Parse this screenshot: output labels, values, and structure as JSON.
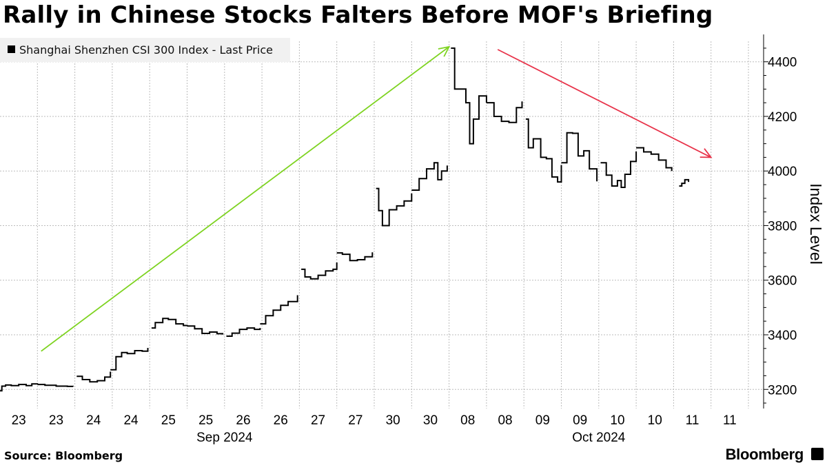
{
  "title": "Rally in Chinese Stocks Falters Before MOF's Briefing",
  "source": "Source: Bloomberg",
  "brand": "Bloomberg",
  "colors": {
    "series": "#000000",
    "up_arrow": "#7ed321",
    "down_arrow": "#e8334a",
    "grid": "#bbbbbb",
    "legend_bg": "#f1f1f1"
  },
  "chart_data": {
    "type": "line",
    "title": "Rally in Chinese Stocks Falters Before MOF's Briefing",
    "legend": [
      {
        "name": "Shanghai Shenzhen CSI 300 Index - Last Price",
        "color": "#000000",
        "placement": "top-left"
      }
    ],
    "xlabel": "",
    "ylabel": "Index Level",
    "y_axis_side": "right",
    "ylim": [
      3130,
      4480
    ],
    "yticks": [
      3200,
      3400,
      3600,
      3800,
      4000,
      4200,
      4400
    ],
    "grid": true,
    "x_tick_labels": [
      "23",
      "23",
      "24",
      "24",
      "25",
      "25",
      "26",
      "26",
      "27",
      "27",
      "30",
      "30",
      "08",
      "08",
      "09",
      "09",
      "10",
      "10",
      "11",
      "11"
    ],
    "x_group_labels": [
      "Sep 2024",
      "Oct 2024"
    ],
    "session_index_range": [
      0,
      20
    ],
    "series": [
      {
        "name": "Shanghai Shenzhen CSI 300 Index - Last Price",
        "segments": [
          [
            [
              0.0,
              3195
            ],
            [
              0.05,
              3212
            ],
            [
              0.15,
              3216
            ],
            [
              0.3,
              3214
            ],
            [
              0.5,
              3218
            ],
            [
              0.7,
              3214
            ],
            [
              0.85,
              3220
            ],
            [
              1.0,
              3218
            ]
          ],
          [
            [
              1.0,
              3218
            ],
            [
              1.2,
              3215
            ],
            [
              1.5,
              3212
            ],
            [
              1.8,
              3211
            ],
            [
              1.95,
              3210
            ]
          ],
          [
            [
              2.05,
              3248
            ],
            [
              2.2,
              3236
            ],
            [
              2.4,
              3228
            ],
            [
              2.6,
              3232
            ],
            [
              2.8,
              3245
            ],
            [
              2.95,
              3265
            ]
          ],
          [
            [
              2.95,
              3272
            ],
            [
              3.1,
              3320
            ],
            [
              3.25,
              3335
            ],
            [
              3.4,
              3331
            ],
            [
              3.6,
              3342
            ],
            [
              3.8,
              3340
            ],
            [
              3.95,
              3352
            ]
          ],
          [
            [
              4.05,
              3425
            ],
            [
              4.15,
              3445
            ],
            [
              4.35,
              3460
            ],
            [
              4.5,
              3456
            ],
            [
              4.7,
              3440
            ],
            [
              4.9,
              3434
            ],
            [
              5.0,
              3432
            ]
          ],
          [
            [
              5.0,
              3432
            ],
            [
              5.2,
              3422
            ],
            [
              5.4,
              3405
            ],
            [
              5.6,
              3410
            ],
            [
              5.8,
              3404
            ],
            [
              5.95,
              3401
            ]
          ],
          [
            [
              6.05,
              3395
            ],
            [
              6.2,
              3406
            ],
            [
              6.4,
              3420
            ],
            [
              6.6,
              3425
            ],
            [
              6.8,
              3420
            ],
            [
              6.95,
              3425
            ]
          ],
          [
            [
              6.95,
              3440
            ],
            [
              7.1,
              3470
            ],
            [
              7.3,
              3490
            ],
            [
              7.5,
              3508
            ],
            [
              7.7,
              3522
            ],
            [
              7.95,
              3545
            ]
          ],
          [
            [
              8.05,
              3640
            ],
            [
              8.15,
              3612
            ],
            [
              8.3,
              3605
            ],
            [
              8.5,
              3618
            ],
            [
              8.7,
              3634
            ],
            [
              8.9,
              3640
            ],
            [
              9.0,
              3665
            ]
          ],
          [
            [
              9.0,
              3700
            ],
            [
              9.15,
              3695
            ],
            [
              9.35,
              3672
            ],
            [
              9.55,
              3675
            ],
            [
              9.75,
              3686
            ],
            [
              9.95,
              3702
            ]
          ],
          [
            [
              10.05,
              3936
            ],
            [
              10.12,
              3855
            ],
            [
              10.22,
              3800
            ],
            [
              10.4,
              3858
            ],
            [
              10.6,
              3872
            ],
            [
              10.8,
              3890
            ],
            [
              11.0,
              3918
            ]
          ],
          [
            [
              11.0,
              3930
            ],
            [
              11.2,
              3972
            ],
            [
              11.4,
              4008
            ],
            [
              11.6,
              4030
            ],
            [
              11.7,
              3968
            ],
            [
              11.8,
              4000
            ],
            [
              11.95,
              4020
            ]
          ],
          [
            [
              12.05,
              4450
            ],
            [
              12.15,
              4300
            ],
            [
              12.3,
              4300
            ],
            [
              12.45,
              4250
            ],
            [
              12.55,
              4100
            ],
            [
              12.65,
              4190
            ],
            [
              12.8,
              4275
            ],
            [
              13.0,
              4250
            ]
          ],
          [
            [
              13.0,
              4250
            ],
            [
              13.2,
              4200
            ],
            [
              13.4,
              4182
            ],
            [
              13.6,
              4178
            ],
            [
              13.8,
              4232
            ],
            [
              13.95,
              4255
            ]
          ],
          [
            [
              14.05,
              4190
            ],
            [
              14.12,
              4085
            ],
            [
              14.25,
              4118
            ],
            [
              14.45,
              4050
            ],
            [
              14.6,
              4045
            ],
            [
              14.75,
              3978
            ],
            [
              14.9,
              3960
            ],
            [
              15.0,
              4022
            ]
          ],
          [
            [
              15.0,
              4030
            ],
            [
              15.15,
              4140
            ],
            [
              15.3,
              4138
            ],
            [
              15.45,
              4055
            ],
            [
              15.6,
              4074
            ],
            [
              15.75,
              4008
            ],
            [
              15.95,
              3962
            ]
          ],
          [
            [
              16.05,
              4030
            ],
            [
              16.2,
              3985
            ],
            [
              16.35,
              3945
            ],
            [
              16.5,
              3965
            ],
            [
              16.6,
              3940
            ],
            [
              16.7,
              3988
            ],
            [
              16.85,
              4035
            ],
            [
              17.0,
              4072
            ]
          ],
          [
            [
              17.0,
              4085
            ],
            [
              17.2,
              4070
            ],
            [
              17.4,
              4062
            ],
            [
              17.6,
              4040
            ],
            [
              17.8,
              4012
            ],
            [
              17.95,
              4000
            ]
          ],
          [
            [
              18.15,
              3945
            ],
            [
              18.22,
              3955
            ],
            [
              18.3,
              3968
            ],
            [
              18.4,
              3960
            ]
          ]
        ]
      }
    ],
    "annotations": [
      {
        "type": "arrow",
        "color": "#7ed321",
        "from": [
          1.1,
          3340
        ],
        "to": [
          12.0,
          4455
        ]
      },
      {
        "type": "arrow",
        "color": "#e8334a",
        "from": [
          13.3,
          4445
        ],
        "to": [
          19.0,
          4050
        ]
      }
    ]
  }
}
